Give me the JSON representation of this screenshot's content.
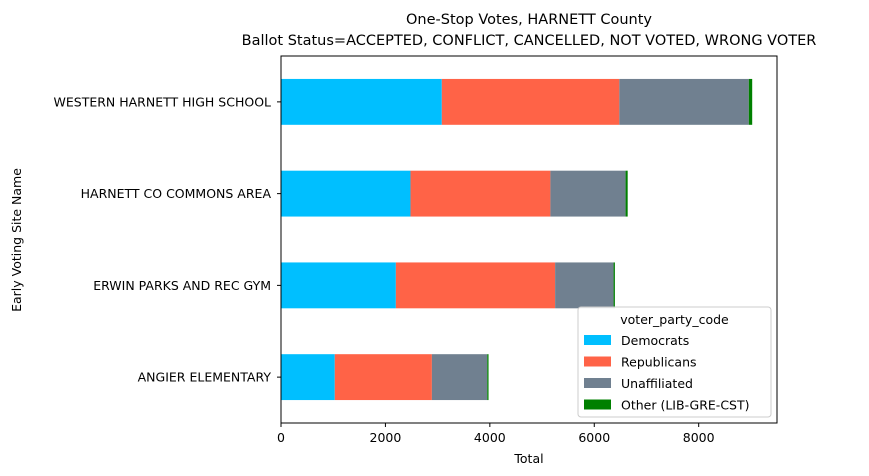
{
  "chart_data": {
    "type": "bar",
    "orientation": "horizontal",
    "stacked": true,
    "title": "One-Stop Votes, HARNETT County",
    "subtitle": "Ballot Status=ACCEPTED, CONFLICT, CANCELLED, NOT VOTED, WRONG VOTER",
    "xlabel": "Total",
    "ylabel": "Early Voting Site Name",
    "xlim": [
      0,
      9500
    ],
    "xticks": [
      0,
      2000,
      4000,
      6000,
      8000
    ],
    "xtick_labels": [
      "0",
      "2000",
      "4000",
      "6000",
      "8000"
    ],
    "categories": [
      "ANGIER ELEMENTARY",
      "ERWIN PARKS AND REC GYM",
      "HARNETT CO COMMONS AREA",
      "WESTERN HARNETT HIGH SCHOOL"
    ],
    "series": [
      {
        "name": "Democrats",
        "color": "#00bfff",
        "values": [
          1030,
          2200,
          2480,
          3080
        ]
      },
      {
        "name": "Republicans",
        "color": "#ff6347",
        "values": [
          1860,
          3050,
          2680,
          3400
        ]
      },
      {
        "name": "Unaffiliated",
        "color": "#708090",
        "values": [
          1060,
          1120,
          1440,
          2480
        ]
      },
      {
        "name": "Other (LIB-GRE-CST)",
        "color": "#008000",
        "values": [
          25,
          25,
          40,
          65
        ]
      }
    ],
    "legend": {
      "title": "voter_party_code",
      "position": "lower-right"
    },
    "grid": false
  }
}
